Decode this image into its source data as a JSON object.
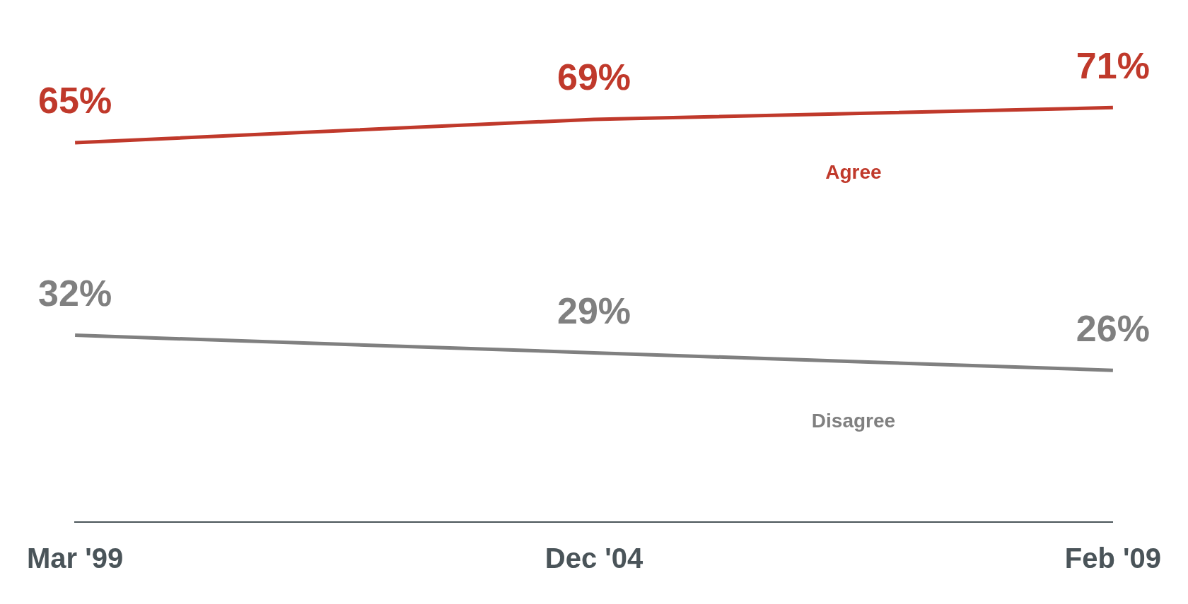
{
  "chart_data": {
    "type": "line",
    "categories": [
      "Mar '99",
      "Dec '04",
      "Feb '09"
    ],
    "series": [
      {
        "name": "Agree",
        "color": "#c0392b",
        "values": [
          65,
          69,
          71
        ],
        "value_labels": [
          "65%",
          "69%",
          "71%"
        ]
      },
      {
        "name": "Disagree",
        "color": "#808080",
        "values": [
          32,
          29,
          26
        ],
        "value_labels": [
          "32%",
          "29%",
          "26%"
        ]
      }
    ],
    "tick_labels": "x",
    "legend": false,
    "grid": false,
    "marker": "none",
    "line_style": "solid"
  }
}
